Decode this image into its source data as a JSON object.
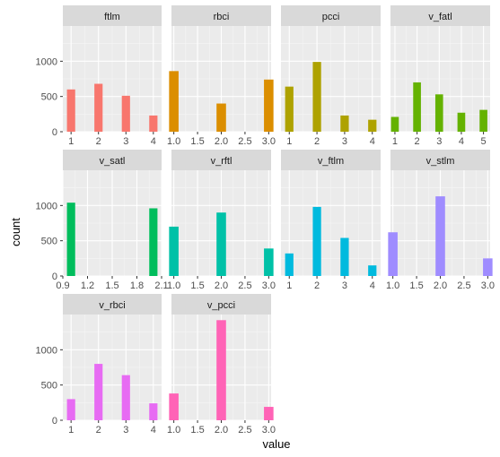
{
  "chart_data": {
    "type": "bar",
    "layout": "facet_wrap",
    "xlabel": "value",
    "ylabel": "count",
    "y_ticks": [
      0,
      500,
      1000
    ],
    "ylim": [
      0,
      1500
    ],
    "grid": true,
    "panels": [
      {
        "label": "ftlm",
        "color": "#F8766D",
        "xlim": [
          0.7,
          4.3
        ],
        "x_ticks": [
          1,
          2,
          3,
          4
        ],
        "x_tick_labels": [
          "1",
          "2",
          "3",
          "4"
        ],
        "bar_width": 0.3,
        "x": [
          1,
          2,
          3,
          4
        ],
        "values": [
          600,
          680,
          510,
          230
        ]
      },
      {
        "label": "rbci",
        "color": "#DB8E00",
        "xlim": [
          0.95,
          3.05
        ],
        "x_ticks": [
          1.0,
          1.5,
          2.0,
          2.5,
          3.0
        ],
        "x_tick_labels": [
          "1.0",
          "1.5",
          "2.0",
          "2.5",
          "3.0"
        ],
        "bar_width": 0.2,
        "x": [
          1,
          2,
          3
        ],
        "values": [
          860,
          400,
          740
        ]
      },
      {
        "label": "pcci",
        "color": "#AEA200",
        "xlim": [
          0.7,
          4.3
        ],
        "x_ticks": [
          1,
          2,
          3,
          4
        ],
        "x_tick_labels": [
          "1",
          "2",
          "3",
          "4"
        ],
        "bar_width": 0.3,
        "x": [
          1,
          2,
          3,
          4
        ],
        "values": [
          640,
          990,
          230,
          170
        ]
      },
      {
        "label": "v_fatl",
        "color": "#64B200",
        "xlim": [
          0.8,
          5.3
        ],
        "x_ticks": [
          1,
          2,
          3,
          4,
          5
        ],
        "x_tick_labels": [
          "1",
          "2",
          "3",
          "4",
          "5"
        ],
        "bar_width": 0.35,
        "x": [
          1,
          2,
          3,
          4,
          5
        ],
        "values": [
          210,
          700,
          530,
          270,
          310
        ]
      },
      {
        "label": "v_satl",
        "color": "#00BD5C",
        "xlim": [
          0.9,
          2.1
        ],
        "x_ticks": [
          0.9,
          1.2,
          1.5,
          1.8,
          2.1
        ],
        "x_tick_labels": [
          "0.9",
          "1.2",
          "1.5",
          "1.8",
          "2.1"
        ],
        "bar_width": 0.1,
        "x": [
          1,
          2
        ],
        "values": [
          1040,
          960
        ]
      },
      {
        "label": "v_rftl",
        "color": "#00C1A7",
        "xlim": [
          0.95,
          3.05
        ],
        "x_ticks": [
          1.0,
          1.5,
          2.0,
          2.5,
          3.0
        ],
        "x_tick_labels": [
          "1.0",
          "1.5",
          "2.0",
          "2.5",
          "3.0"
        ],
        "bar_width": 0.2,
        "x": [
          1,
          2,
          3
        ],
        "values": [
          700,
          900,
          390
        ]
      },
      {
        "label": "v_ftlm",
        "color": "#00BADE",
        "xlim": [
          0.7,
          4.3
        ],
        "x_ticks": [
          1,
          2,
          3,
          4
        ],
        "x_tick_labels": [
          "1",
          "2",
          "3",
          "4"
        ],
        "bar_width": 0.3,
        "x": [
          1,
          2,
          3,
          4
        ],
        "values": [
          320,
          980,
          540,
          150
        ]
      },
      {
        "label": "v_stlm",
        "color": "#9F8CFF",
        "xlim": [
          0.95,
          3.05
        ],
        "x_ticks": [
          1.0,
          1.5,
          2.0,
          2.5,
          3.0
        ],
        "x_tick_labels": [
          "1.0",
          "1.5",
          "2.0",
          "2.5",
          "3.0"
        ],
        "bar_width": 0.2,
        "x": [
          1,
          2,
          3
        ],
        "values": [
          620,
          1130,
          250
        ]
      },
      {
        "label": "v_rbci",
        "color": "#E76BF3",
        "xlim": [
          0.7,
          4.3
        ],
        "x_ticks": [
          1,
          2,
          3,
          4
        ],
        "x_tick_labels": [
          "1",
          "2",
          "3",
          "4"
        ],
        "bar_width": 0.3,
        "x": [
          1,
          2,
          3,
          4
        ],
        "values": [
          300,
          800,
          640,
          240
        ]
      },
      {
        "label": "v_pcci",
        "color": "#FF63B6",
        "xlim": [
          0.95,
          3.05
        ],
        "x_ticks": [
          1.0,
          1.5,
          2.0,
          2.5,
          3.0
        ],
        "x_tick_labels": [
          "1.0",
          "1.5",
          "2.0",
          "2.5",
          "3.0"
        ],
        "bar_width": 0.2,
        "x": [
          1,
          2,
          3
        ],
        "values": [
          380,
          1420,
          190
        ]
      }
    ]
  }
}
